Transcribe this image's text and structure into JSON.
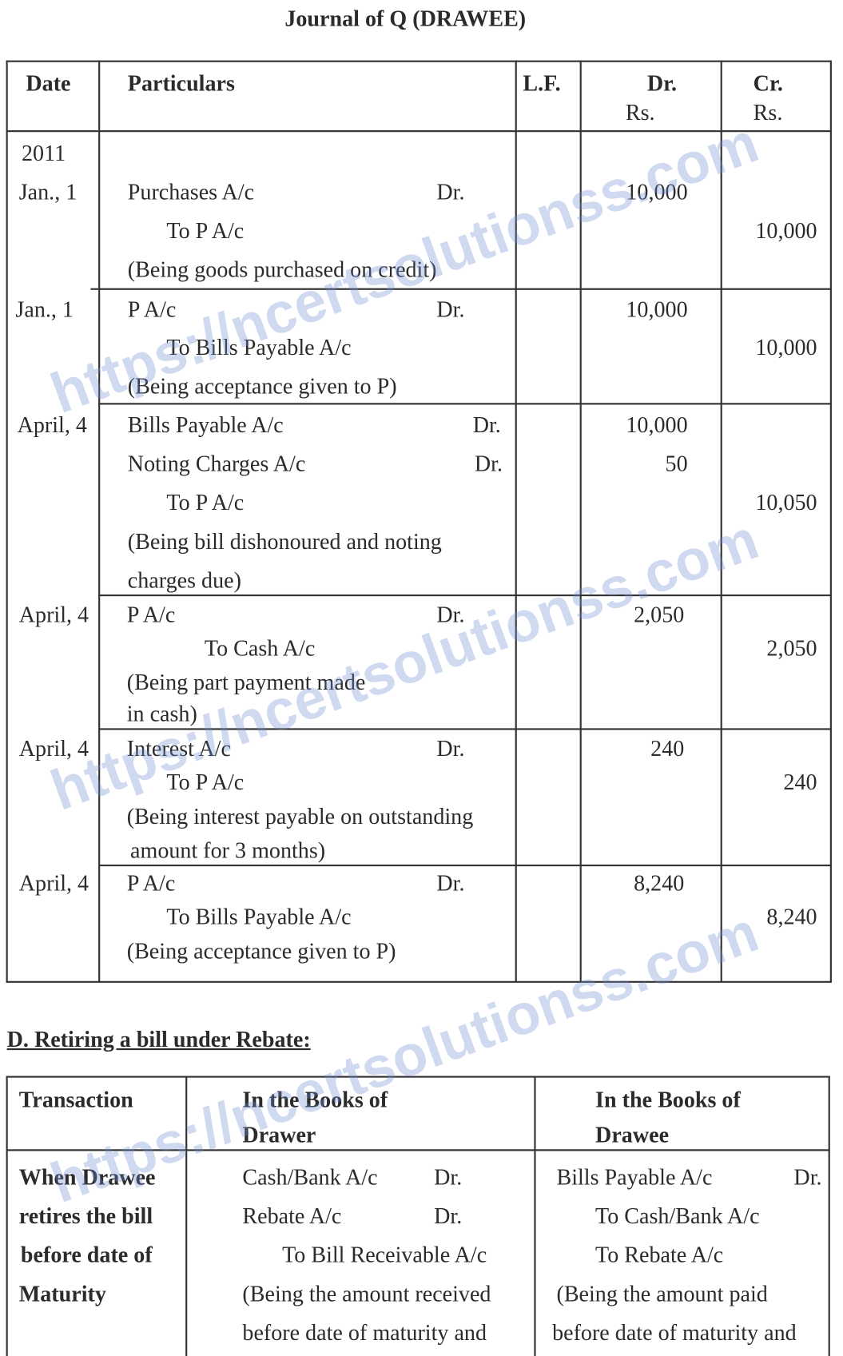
{
  "title": "Journal of Q (DRAWEE)",
  "journal": {
    "headers": {
      "date": "Date",
      "particulars": "Particulars",
      "lf": "L.F.",
      "dr": "Dr.",
      "dr_unit": "Rs.",
      "cr": "Cr.",
      "cr_unit": "Rs."
    },
    "year": "2011",
    "entries": [
      {
        "date": "Jan., 1",
        "lines": [
          "Purchases A/c",
          "To P  A/c",
          "(Being goods purchased on credit)"
        ],
        "dr_mark": "Dr.",
        "dr": "10,000",
        "cr": "10,000"
      },
      {
        "date": "Jan., 1",
        "lines": [
          "P  A/c",
          "To Bills Payable A/c",
          "(Being acceptance given to P)"
        ],
        "dr_mark": "Dr.",
        "dr": "10,000",
        "cr": "10,000"
      },
      {
        "date": "April, 4",
        "lines": [
          "Bills Payable A/c",
          "Noting Charges A/c",
          "To P  A/c",
          "(Being bill dishonoured and noting",
          "charges due)"
        ],
        "dr_mark": "Dr.",
        "dr": "10,000",
        "dr2_mark": "Dr.",
        "dr2": "50",
        "cr": "10,050"
      },
      {
        "date": "April, 4",
        "lines": [
          "P  A/c",
          "To Cash A/c",
          "(Being part payment made",
          "in cash)"
        ],
        "dr_mark": "Dr.",
        "dr": "2,050",
        "cr": "2,050"
      },
      {
        "date": "April, 4",
        "lines": [
          "Interest A/c",
          "To P  A/c",
          "(Being interest payable on outstanding",
          "amount for 3 months)"
        ],
        "dr_mark": "Dr.",
        "dr": "240",
        "cr": "240"
      },
      {
        "date": "April, 4",
        "lines": [
          "P  A/c",
          "To Bills Payable A/c",
          "(Being acceptance given to P)"
        ],
        "dr_mark": "Dr.",
        "dr": "8,240",
        "cr": "8,240"
      }
    ]
  },
  "section_d": {
    "heading": "D. Retiring a bill under Rebate:",
    "headers": {
      "transaction": "Transaction",
      "drawer": [
        "In the Books of",
        "Drawer"
      ],
      "drawee": [
        "In the Books of",
        "Drawee"
      ]
    },
    "transaction": [
      "When Drawee",
      "retires the bill",
      "before date of",
      "Maturity"
    ],
    "drawer_lines": [
      "Cash/Bank A/c",
      "Rebate A/c",
      "To Bill Receivable A/c",
      "(Being the amount received",
      "before date of maturity and"
    ],
    "drawer_dr": [
      "Dr.",
      "Dr."
    ],
    "drawee_lines": [
      "Bills Payable A/c",
      "To Cash/Bank A/c",
      "To Rebate A/c",
      "(Being the amount paid",
      "before date of maturity and"
    ],
    "drawee_dr": "Dr."
  },
  "watermark": "https://ncertsolutionss.com"
}
